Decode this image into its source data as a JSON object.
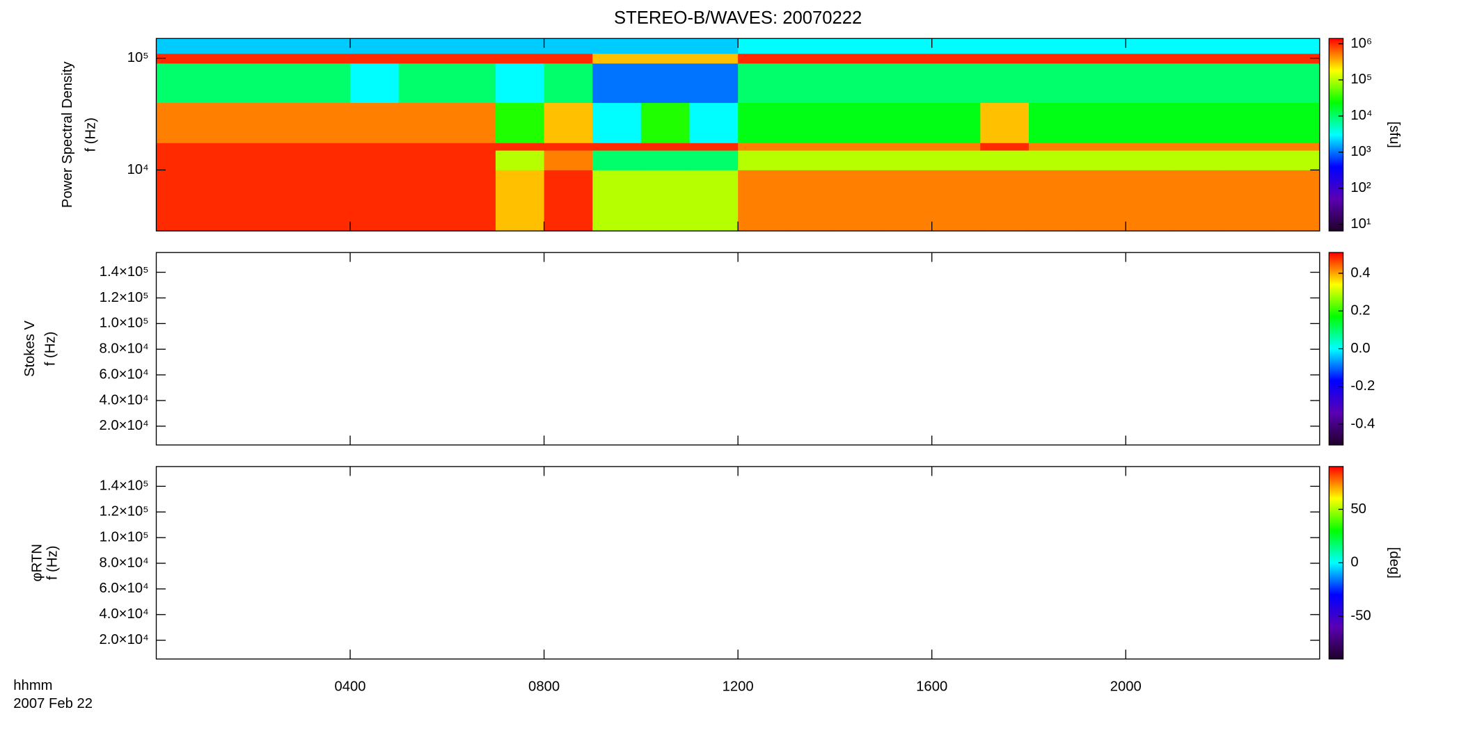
{
  "title": "STEREO-B/WAVES: 20070222",
  "x_axis": {
    "label": "hhmm",
    "date": "2007 Feb 22",
    "xlim": [
      0,
      24
    ],
    "xticks": [
      {
        "value": 4,
        "label": "0400"
      },
      {
        "value": 8,
        "label": "0800"
      },
      {
        "value": 12,
        "label": "1200"
      },
      {
        "value": 16,
        "label": "1600"
      },
      {
        "value": 20,
        "label": "2000"
      }
    ]
  },
  "colormap": [
    "#200028",
    "#5a00b4",
    "#0000ff",
    "#00ffff",
    "#00ff00",
    "#ffff00",
    "#ff0000"
  ],
  "chart_data": [
    {
      "type": "heatmap",
      "ylabel": [
        "Power Spectral Density",
        "f (Hz)"
      ],
      "ylog": true,
      "ylim": [
        2850,
        150000
      ],
      "yticks": [
        {
          "value": 10000,
          "label": "10⁴"
        },
        {
          "value": 100000,
          "label": "10⁵"
        }
      ],
      "zlog": true,
      "zlim": [
        6.6,
        1400000
      ],
      "zlabel": "[sfu]",
      "zticks": [
        {
          "value": 10,
          "label": "10¹"
        },
        {
          "value": 100,
          "label": "10²"
        },
        {
          "value": 1000,
          "label": "10³"
        },
        {
          "value": 10000,
          "label": "10⁴"
        },
        {
          "value": 100000,
          "label": "10⁵"
        },
        {
          "value": 1000000,
          "label": "10⁶"
        }
      ],
      "xbins": [
        0,
        1,
        2,
        3,
        4,
        5,
        6,
        7,
        8,
        9,
        10,
        11,
        12,
        13,
        14,
        15,
        16,
        17,
        18,
        19,
        20,
        21,
        22,
        23,
        24
      ],
      "ybins": [
        2850,
        10000,
        15000,
        17500,
        40000,
        90000,
        110000,
        150000
      ],
      "values": [
        [
          1000000,
          1000000,
          1000000,
          1000000,
          1000000,
          1000000,
          1000000,
          300000,
          1000000,
          100000,
          100000,
          100000,
          500000,
          500000,
          500000,
          500000,
          500000,
          500000,
          500000,
          500000,
          500000,
          500000,
          500000,
          500000
        ],
        [
          1000000,
          1000000,
          1000000,
          1000000,
          1000000,
          1000000,
          1000000,
          100000,
          500000,
          10000,
          10000,
          10000,
          100000,
          100000,
          100000,
          100000,
          100000,
          100000,
          100000,
          100000,
          100000,
          100000,
          100000,
          100000
        ],
        [
          1000000,
          1000000,
          1000000,
          1000000,
          1000000,
          1000000,
          1000000,
          1000000,
          1000000,
          1000000,
          1000000,
          1000000,
          500000,
          500000,
          500000,
          500000,
          500000,
          1000000,
          500000,
          500000,
          500000,
          500000,
          500000,
          500000
        ],
        [
          500000,
          500000,
          500000,
          500000,
          500000,
          500000,
          500000,
          30000,
          300000,
          3000,
          30000,
          3000,
          20000,
          20000,
          20000,
          20000,
          20000,
          300000,
          20000,
          20000,
          20000,
          20000,
          20000,
          20000
        ],
        [
          10000,
          10000,
          10000,
          10000,
          3000,
          10000,
          10000,
          3000,
          10000,
          1000,
          1000,
          1000,
          10000,
          10000,
          10000,
          10000,
          10000,
          10000,
          10000,
          10000,
          10000,
          10000,
          10000,
          10000
        ],
        [
          1000000,
          1000000,
          1000000,
          1000000,
          1000000,
          1000000,
          1000000,
          1000000,
          1000000,
          300000,
          300000,
          300000,
          1000000,
          1000000,
          1000000,
          1000000,
          1000000,
          1000000,
          1000000,
          1000000,
          1000000,
          1000000,
          1000000,
          1000000
        ],
        [
          2000,
          2000,
          2000,
          2000,
          2000,
          2000,
          2000,
          2000,
          2000,
          2000,
          2000,
          2000,
          3000,
          3000,
          3000,
          3000,
          3000,
          3000,
          3000,
          3000,
          3000,
          3000,
          3000,
          3000
        ]
      ]
    },
    {
      "type": "heatmap",
      "ylabel": [
        "Stokes V",
        "f (Hz)"
      ],
      "ylim": [
        5350,
        155400
      ],
      "yticks": [
        {
          "value": 20000,
          "label": "2.0×10⁴"
        },
        {
          "value": 40000,
          "label": "4.0×10⁴"
        },
        {
          "value": 60000,
          "label": "6.0×10⁴"
        },
        {
          "value": 80000,
          "label": "8.0×10⁴"
        },
        {
          "value": 100000,
          "label": "1.0×10⁵"
        },
        {
          "value": 120000,
          "label": "1.2×10⁵"
        },
        {
          "value": 140000,
          "label": "1.4×10⁵"
        }
      ],
      "zlim": [
        -0.51,
        0.51
      ],
      "zticks": [
        -0.4,
        -0.2,
        {
          "value": 0,
          "label": "0.0"
        },
        0.2,
        0.4
      ]
    },
    {
      "type": "heatmap",
      "ylabel": [
        "φRTN",
        "f (Hz)"
      ],
      "ylim": [
        5350,
        155400
      ],
      "yticks": [
        {
          "value": 20000,
          "label": "2.0×10⁴"
        },
        {
          "value": 40000,
          "label": "4.0×10⁴"
        },
        {
          "value": 60000,
          "label": "6.0×10⁴"
        },
        {
          "value": 80000,
          "label": "8.0×10⁴"
        },
        {
          "value": 100000,
          "label": "1.0×10⁵"
        },
        {
          "value": 120000,
          "label": "1.2×10⁵"
        },
        {
          "value": 140000,
          "label": "1.4×10⁵"
        }
      ],
      "zlim": [
        -90,
        90
      ],
      "zlabel": "[deg]",
      "zticks": [
        -50,
        0,
        50
      ]
    }
  ]
}
